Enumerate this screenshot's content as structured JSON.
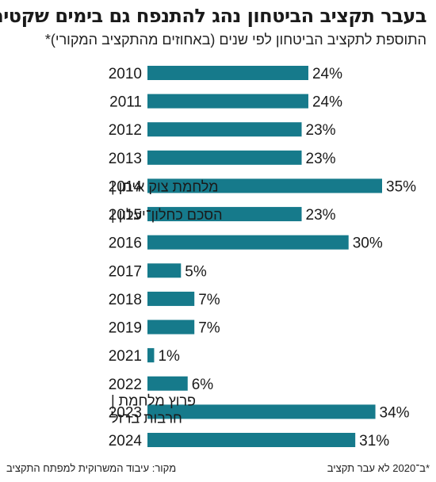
{
  "title": "בעבר תקציב הביטחון נהג להתנפח גם בימים שקטים",
  "subtitle": "התוספת לתקציב הביטחון לפי שנים (באחוזים מהתקציב המקורי)*",
  "footer": {
    "source": "מקור: עיבוד המשרוקית למפתח התקציב",
    "note": "*ב־2020 לא עבר תקציב"
  },
  "colors": {
    "bar": "#167A8B",
    "text": "#1a1a1a"
  },
  "chart_data": {
    "type": "bar",
    "orientation": "horizontal",
    "title": "בעבר תקציב הביטחון נהג להתנפח גם בימים שקטים",
    "subtitle": "התוספת לתקציב הביטחון לפי שנים (באחוזים מהתקציב המקורי)*",
    "categories": [
      "2010",
      "2011",
      "2012",
      "2013",
      "2014",
      "2015",
      "2016",
      "2017",
      "2018",
      "2019",
      "2021",
      "2022",
      "2023",
      "2024"
    ],
    "values": [
      24,
      24,
      23,
      23,
      35,
      23,
      30,
      5,
      7,
      7,
      1,
      6,
      34,
      31
    ],
    "value_labels": [
      "24%",
      "24%",
      "23%",
      "23%",
      "35%",
      "23%",
      "30%",
      "5%",
      "7%",
      "7%",
      "1%",
      "6%",
      "34%",
      "31%"
    ],
    "annotations": [
      {
        "category": "2014",
        "lines": [
          "מלחמת צוק איתן |"
        ]
      },
      {
        "category": "2015",
        "lines": [
          "הסכם כחלון־יעלון |"
        ]
      },
      {
        "category": "2023",
        "lines": [
          "פרוץ מלחמת |",
          "חרבות ברזל"
        ]
      }
    ],
    "xlim": [
      0,
      35
    ],
    "grid": false,
    "legend": "none"
  }
}
